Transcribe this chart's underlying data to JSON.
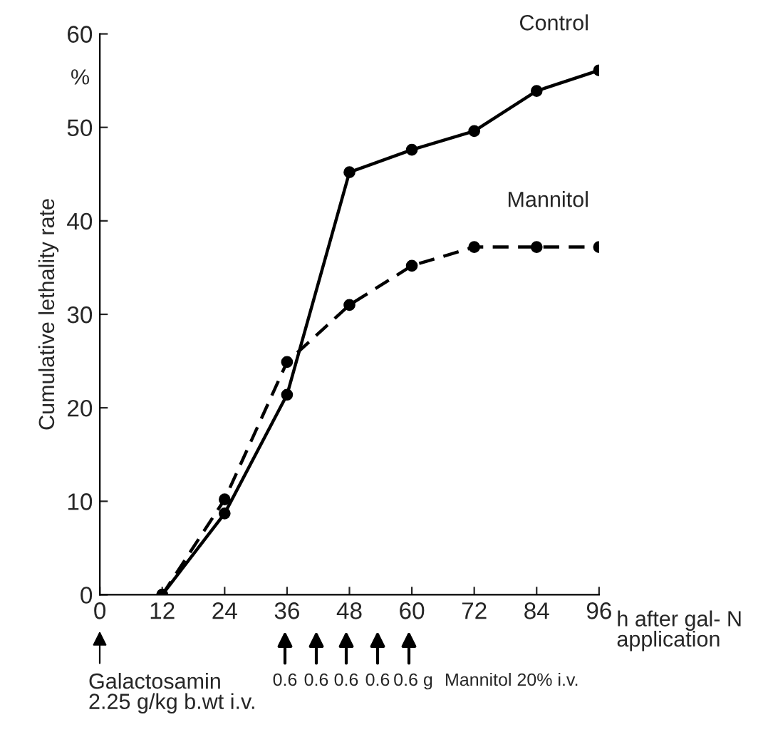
{
  "chart_data": {
    "type": "line",
    "ylabel": "Cumulative lethality rate",
    "xlabel": "h after gal- N\napplication",
    "x": [
      12,
      24,
      36,
      48,
      60,
      72,
      84,
      96
    ],
    "series": [
      {
        "name": "Control",
        "color": "#000000",
        "line_style": "solid",
        "values": [
          0,
          8.7,
          21.4,
          45.2,
          47.6,
          49.6,
          53.9,
          56.1
        ]
      },
      {
        "name": "Mannitol",
        "color": "#000000",
        "line_style": "dashed",
        "values": [
          0,
          10.2,
          24.9,
          31.0,
          35.2,
          37.2,
          37.2,
          37.2
        ]
      }
    ],
    "xlim": [
      0,
      96
    ],
    "xticks": [
      0,
      12,
      24,
      36,
      48,
      60,
      72,
      84,
      96
    ],
    "ylim": [
      0,
      60
    ],
    "yticks": [
      0,
      10,
      20,
      30,
      40,
      50,
      60
    ],
    "marker": "circle",
    "grid": false,
    "legend": false,
    "annotations": [
      "%",
      "Galactosamin\n2.25 g/kg b.wt i.v.",
      "0.6",
      "0.6",
      "0.6",
      "0.6",
      "0.6 g",
      "Mannitol 20% i.v."
    ]
  }
}
